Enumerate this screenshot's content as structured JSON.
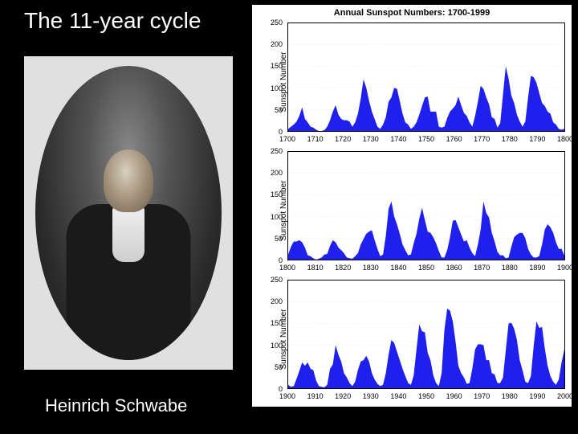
{
  "slide": {
    "title": "The 11-year cycle",
    "caption": "Heinrich Schwabe",
    "background_color": "#000000",
    "text_color": "#ffffff"
  },
  "portrait": {
    "description": "Heinrich Schwabe portrait",
    "frame_color": "#e0e0e0",
    "oval_bg": "#2a2a2a"
  },
  "chartset": {
    "title": "Annual Sunspot Numbers:  1700-1999",
    "title_fontsize": 11,
    "background_color": "#ffffff",
    "fill_color": "#2020ee",
    "grid_color": "#cccccc",
    "ylabel": "Sunspot Number",
    "ylabel_fontsize": 10,
    "tick_fontsize": 9,
    "ylim": [
      0,
      250
    ],
    "ytick_step": 50,
    "panels": [
      {
        "xrange": [
          1700,
          1800
        ],
        "xtick_step": 10,
        "values": [
          5,
          10,
          15,
          22,
          35,
          55,
          28,
          20,
          10,
          8,
          3,
          0,
          0,
          2,
          10,
          25,
          45,
          60,
          38,
          28,
          25,
          25,
          22,
          10,
          20,
          40,
          75,
          120,
          100,
          70,
          45,
          28,
          10,
          5,
          15,
          32,
          68,
          78,
          100,
          98,
          70,
          40,
          20,
          15,
          5,
          10,
          20,
          38,
          58,
          78,
          80,
          45,
          45,
          45,
          10,
          8,
          10,
          30,
          45,
          52,
          60,
          80,
          60,
          42,
          35,
          20,
          10,
          35,
          68,
          105,
          98,
          78,
          62,
          32,
          28,
          8,
          18,
          85,
          150,
          122,
          82,
          65,
          38,
          22,
          10,
          22,
          78,
          128,
          125,
          112,
          88,
          65,
          58,
          45,
          40,
          20,
          15,
          5,
          3,
          5
        ]
      },
      {
        "xrange": [
          1800,
          1900
        ],
        "xtick_step": 10,
        "values": [
          12,
          30,
          42,
          42,
          45,
          40,
          28,
          10,
          8,
          3,
          0,
          2,
          5,
          12,
          13,
          32,
          45,
          40,
          28,
          22,
          15,
          5,
          3,
          2,
          8,
          15,
          35,
          48,
          60,
          65,
          68,
          45,
          25,
          8,
          12,
          55,
          118,
          135,
          100,
          82,
          60,
          35,
          22,
          10,
          12,
          38,
          60,
          95,
          120,
          92,
          65,
          62,
          52,
          38,
          20,
          5,
          5,
          22,
          52,
          90,
          92,
          75,
          58,
          42,
          45,
          28,
          15,
          8,
          35,
          70,
          135,
          108,
          98,
          62,
          42,
          18,
          10,
          10,
          3,
          5,
          30,
          52,
          58,
          62,
          62,
          50,
          25,
          12,
          5,
          5,
          8,
          35,
          70,
          82,
          75,
          62,
          40,
          25,
          25,
          10
        ]
      },
      {
        "xrange": [
          1900,
          2000
        ],
        "xtick_step": 10,
        "values": [
          8,
          3,
          5,
          22,
          40,
          60,
          52,
          60,
          45,
          42,
          18,
          5,
          3,
          2,
          8,
          45,
          55,
          100,
          78,
          62,
          35,
          25,
          12,
          5,
          15,
          42,
          62,
          65,
          75,
          62,
          35,
          20,
          10,
          5,
          8,
          35,
          78,
          112,
          105,
          85,
          65,
          45,
          28,
          12,
          8,
          30,
          90,
          148,
          132,
          130,
          82,
          65,
          30,
          12,
          5,
          35,
          135,
          185,
          180,
          155,
          108,
          52,
          35,
          25,
          10,
          12,
          45,
          90,
          102,
          102,
          100,
          65,
          65,
          35,
          32,
          12,
          12,
          25,
          88,
          150,
          152,
          138,
          112,
          65,
          42,
          15,
          12,
          28,
          98,
          155,
          140,
          142,
          92,
          52,
          28,
          15,
          8,
          20,
          60,
          90
        ]
      }
    ]
  }
}
